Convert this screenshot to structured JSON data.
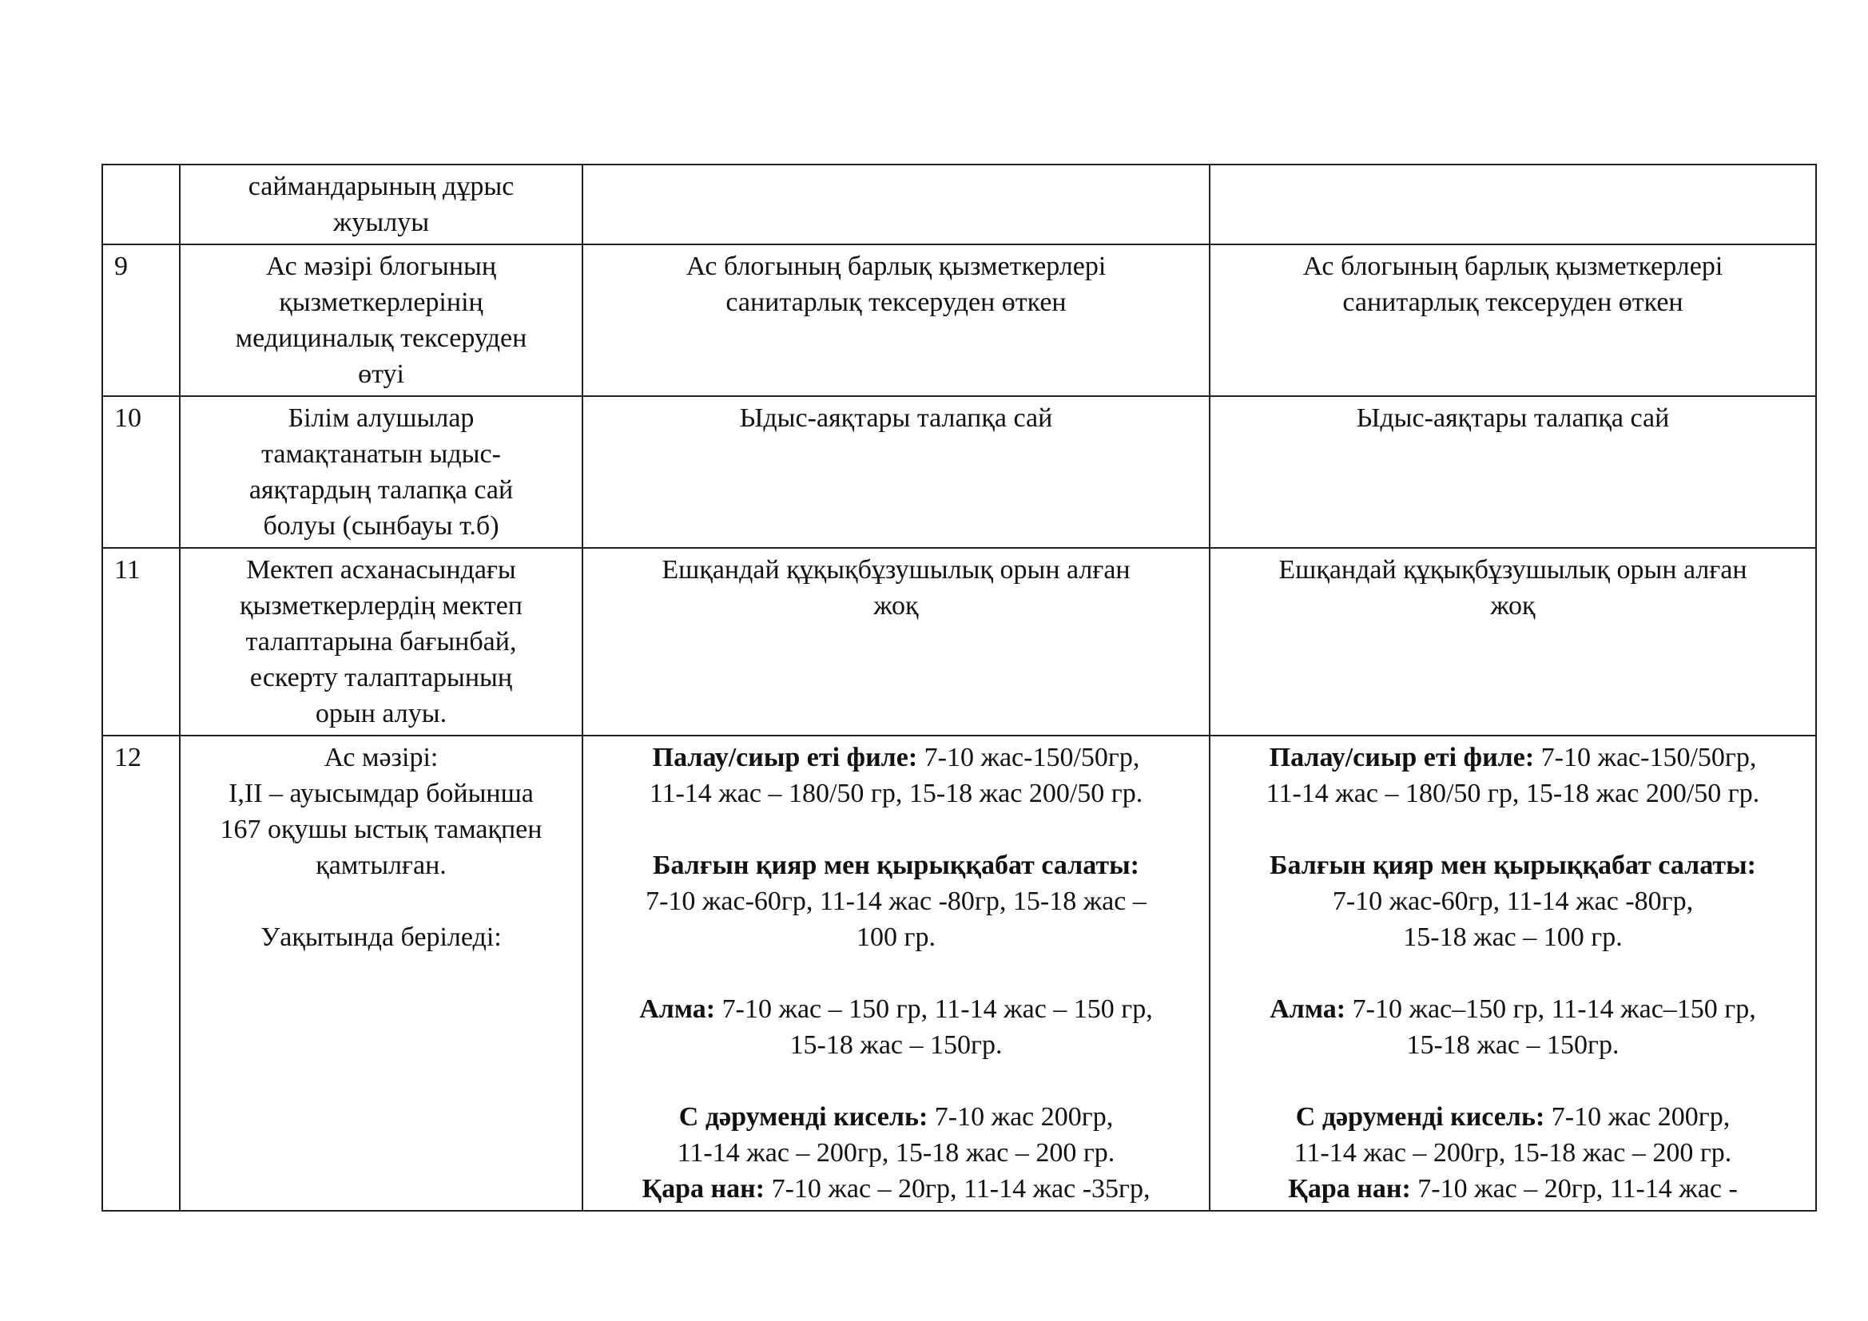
{
  "rows": [
    {
      "num": "",
      "criterion": "саймандарының дұрыс\nжуылуы",
      "col3": "",
      "col4": ""
    },
    {
      "num": "9",
      "criterion": "Ас мәзірі блогының\nқызметкерлерінің\nмедициналық тексеруден\nөтуі",
      "col3": "Ас блогының барлық қызметкерлері\nсанитарлық тексеруден өткен",
      "col4": "Ас блогының барлық қызметкерлері\nсанитарлық тексеруден өткен"
    },
    {
      "num": "10",
      "criterion": "Білім алушылар\nтамақтанатын ыдыс-\nаяқтардың талапқа сай\nболуы (сынбауы т.б)",
      "col3": "Ыдыс-аяқтары талапқа сай",
      "col4": "Ыдыс-аяқтары талапқа сай"
    },
    {
      "num": "11",
      "criterion": "Мектеп асханасындағы\nқызметкерлердің мектеп\nталаптарына бағынбай,\nескерту талаптарының\nорын алуы.",
      "col3": "Ешқандай құқықбұзушылық орын алған\nжоқ",
      "col4": "Ешқандай құқықбұзушылық орын алған\nжоқ"
    }
  ],
  "row12": {
    "num": "12",
    "criterion": "Ас мәзірі:\nI,II – ауысымдар бойынша\n167 оқушы ыстық тамақпен\nқамтылған.",
    "criterion_note": "Уақытында беріледі:",
    "col3": [
      {
        "title": "Палау/сиыр еті филе:",
        "text": " 7-10 жас-150/50гр,\n11-14 жас – 180/50 гр, 15-18 жас 200/50 гр."
      },
      {
        "title": "Балғын қияр мен қырыққабат салаты:",
        "text": "\n7-10 жас-60гр, 11-14 жас -80гр, 15-18 жас –\n100 гр."
      },
      {
        "title": "Алма:",
        "text": " 7-10 жас – 150 гр, 11-14 жас – 150 гр,\n15-18 жас – 150гр."
      },
      {
        "title": "С дәруменді кисель:",
        "text": " 7-10 жас 200гр,\n11-14 жас – 200гр, 15-18 жас – 200 гр."
      },
      {
        "title": "Қара нан:",
        "text": " 7-10 жас – 20гр, 11-14 жас -35гр,"
      }
    ],
    "col4": [
      {
        "title": "Палау/сиыр еті филе:",
        "text": " 7-10 жас-150/50гр,\n11-14 жас – 180/50 гр, 15-18 жас 200/50 гр."
      },
      {
        "title": "Балғын қияр мен қырыққабат салаты:",
        "text": "\n7-10 жас-60гр, 11-14 жас -80гр,\n15-18 жас – 100 гр."
      },
      {
        "title": "Алма:",
        "text": " 7-10 жас–150 гр, 11-14 жас–150 гр,\n15-18 жас – 150гр."
      },
      {
        "title": "С дәруменді кисель:",
        "text": " 7-10 жас 200гр,\n11-14 жас – 200гр, 15-18 жас – 200 гр."
      },
      {
        "title": "Қара нан:",
        "text": " 7-10 жас – 20гр, 11-14 жас -"
      }
    ]
  }
}
